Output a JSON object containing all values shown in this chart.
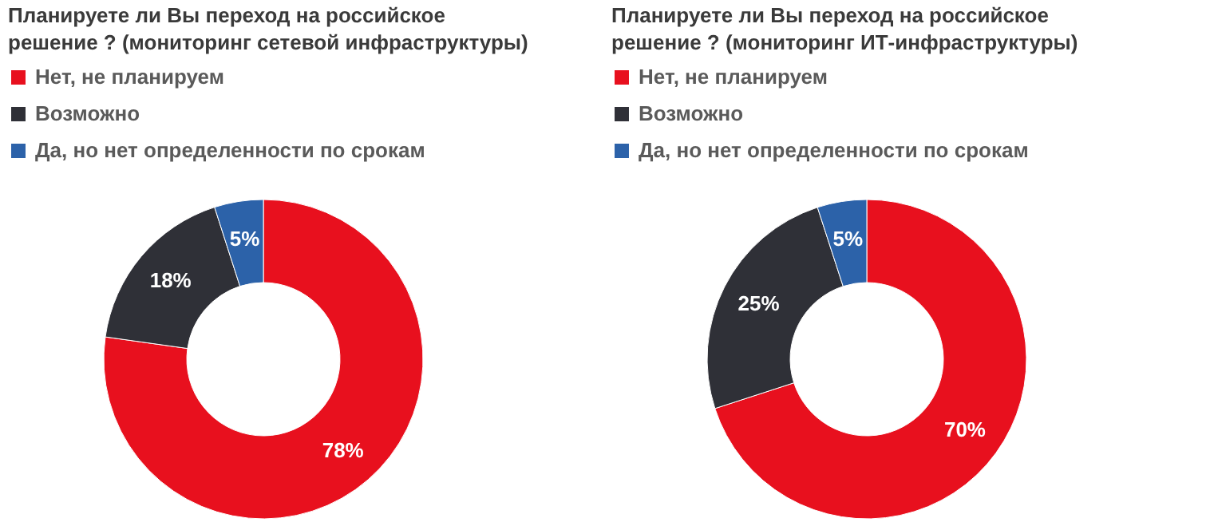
{
  "chart_data": [
    {
      "type": "donut",
      "title": "Планируете ли Вы переход на российское\nрешение ? (мониторинг сетевой инфраструктуры)",
      "categories": [
        "Нет, не планируем",
        "Возможно",
        "Да, но нет определенности по срокам"
      ],
      "values": [
        78,
        18,
        5
      ],
      "colors": [
        "#e8101e",
        "#2f3037",
        "#2c62a9"
      ],
      "value_labels": [
        "78%",
        "18%",
        "5%"
      ],
      "legend": "top left"
    },
    {
      "type": "donut",
      "title": "Планируете ли Вы переход на российское\nрешение ? (мониторинг ИТ-инфраструктуры)",
      "categories": [
        "Нет, не планируем",
        "Возможно",
        "Да, но нет определенности по срокам"
      ],
      "values": [
        70,
        25,
        5
      ],
      "colors": [
        "#e8101e",
        "#2f3037",
        "#2c62a9"
      ],
      "value_labels": [
        "70%",
        "25%",
        "5%"
      ],
      "legend": "top left"
    }
  ]
}
